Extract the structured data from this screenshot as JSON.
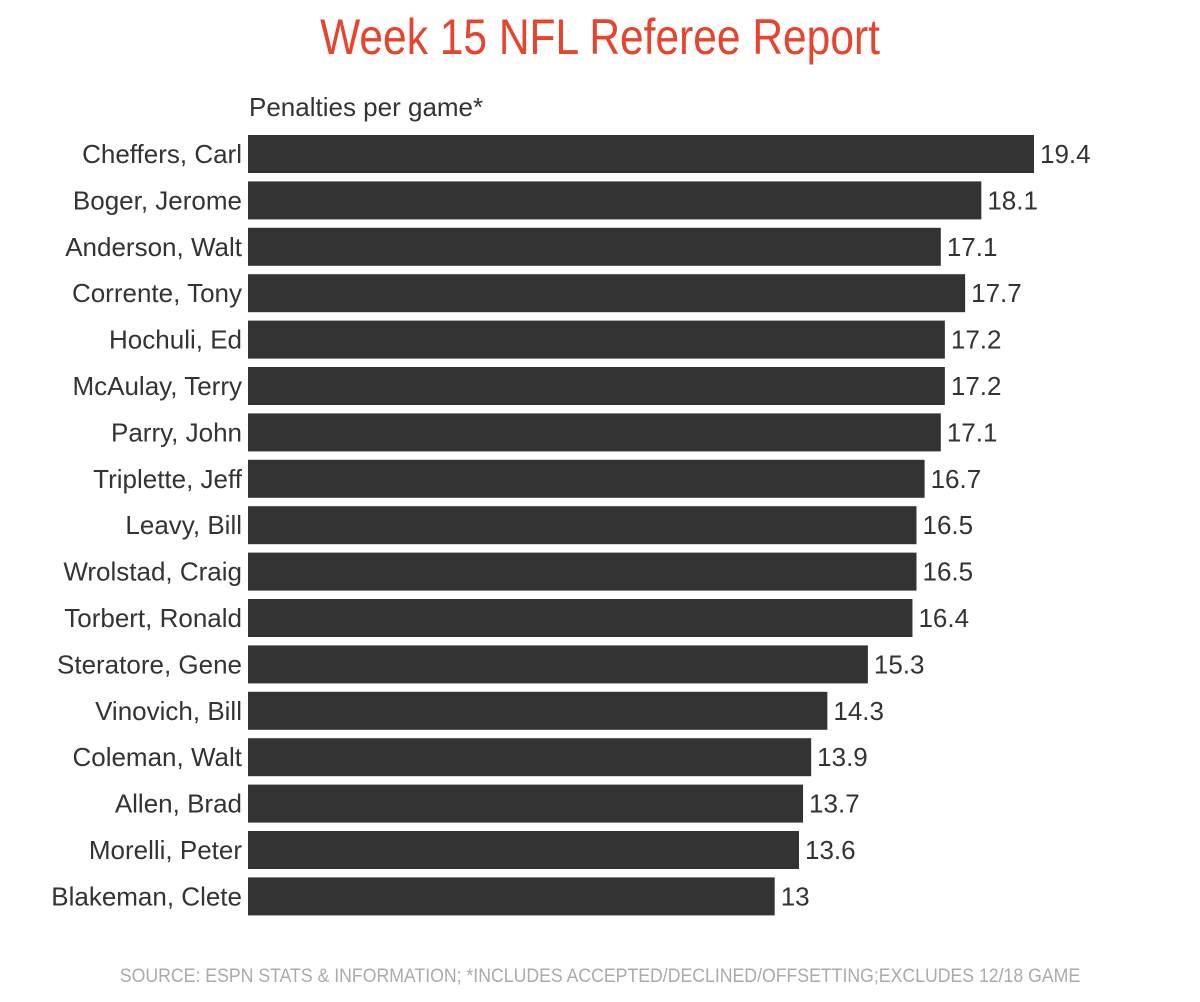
{
  "chart_data": {
    "type": "bar",
    "orientation": "horizontal",
    "title": "Week 15 NFL Referee Report",
    "subtitle": "Penalties per game*",
    "categories": [
      "Cheffers, Carl",
      "Boger, Jerome",
      "Anderson, Walt",
      "Corrente, Tony",
      "Hochuli, Ed",
      "McAulay, Terry",
      "Parry, John",
      "Triplette, Jeff",
      "Leavy, Bill",
      "Wrolstad, Craig",
      "Torbert, Ronald",
      "Steratore, Gene",
      "Vinovich, Bill",
      "Coleman, Walt",
      "Allen, Brad",
      "Morelli, Peter",
      "Blakeman, Clete"
    ],
    "values": [
      19.4,
      18.1,
      17.1,
      17.7,
      17.2,
      17.2,
      17.1,
      16.7,
      16.5,
      16.5,
      16.4,
      15.3,
      14.3,
      13.9,
      13.7,
      13.6,
      13
    ],
    "value_labels": [
      "19.4",
      "18.1",
      "17.1",
      "17.7",
      "17.2",
      "17.2",
      "17.1",
      "16.7",
      "16.5",
      "16.5",
      "16.4",
      "15.3",
      "14.3",
      "13.9",
      "13.7",
      "13.6",
      "13"
    ],
    "xlim": [
      0,
      19.4
    ],
    "grid": false,
    "bar_color": "#333333",
    "title_color": "#e8432c",
    "footer": "SOURCE: ESPN STATS & INFORMATION; *INCLUDES ACCEPTED/DECLINED/OFFSETTING;EXCLUDES 12/18 GAME"
  }
}
